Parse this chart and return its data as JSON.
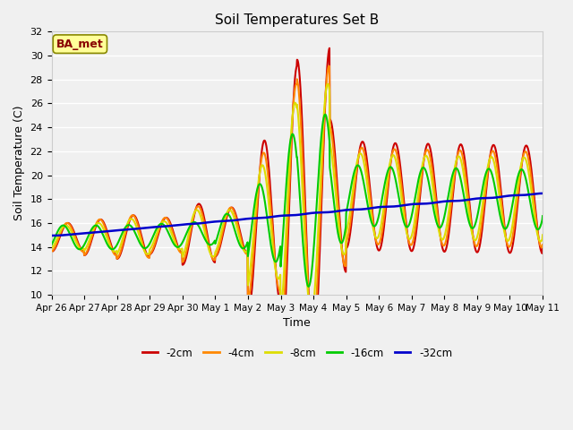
{
  "title": "Soil Temperatures Set B",
  "xlabel": "Time",
  "ylabel": "Soil Temperature (C)",
  "ylim": [
    10,
    32
  ],
  "yticks": [
    10,
    12,
    14,
    16,
    18,
    20,
    22,
    24,
    26,
    28,
    30,
    32
  ],
  "xlim": [
    0,
    360
  ],
  "xtick_labels": [
    "Apr 26",
    "Apr 27",
    "Apr 28",
    "Apr 29",
    "Apr 30",
    "May 1",
    "May 2",
    "May 3",
    "May 4",
    "May 5",
    "May 6",
    "May 7",
    "May 8",
    "May 9",
    "May 10",
    "May 11"
  ],
  "xtick_positions": [
    0,
    24,
    48,
    72,
    96,
    120,
    144,
    168,
    192,
    216,
    240,
    264,
    288,
    312,
    336,
    360
  ],
  "colors": {
    "-2cm": "#cc0000",
    "-4cm": "#ff8800",
    "-8cm": "#dddd00",
    "-16cm": "#00cc00",
    "-32cm": "#0000cc"
  },
  "annotation_text": "BA_met",
  "annotation_box_color": "#ffff99",
  "annotation_text_color": "#880000",
  "plot_bg_color": "#f0f0f0",
  "grid_color": "#ffffff"
}
